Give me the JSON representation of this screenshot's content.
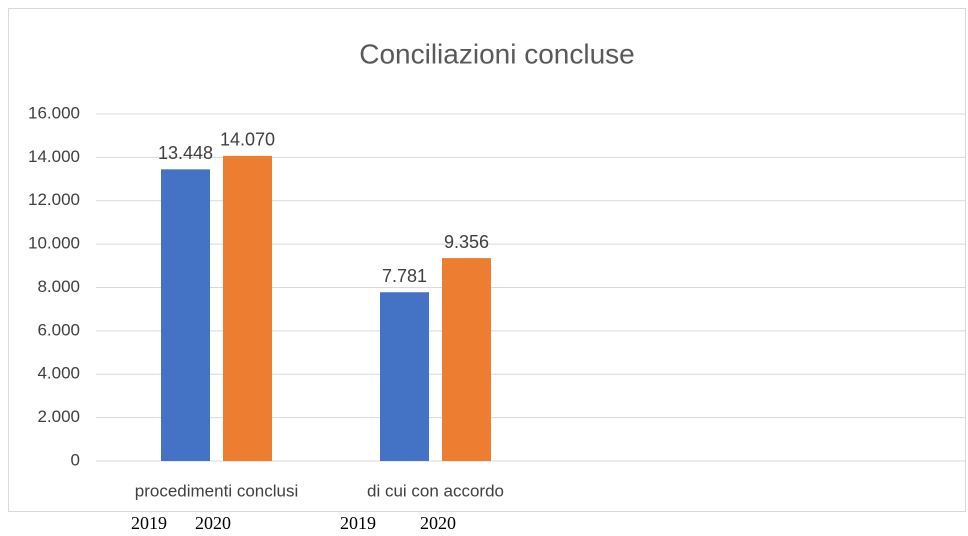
{
  "chart_data": {
    "type": "bar",
    "title": "Conciliazioni concluse",
    "categories": [
      "procedimenti conclusi",
      "di cui con accordo"
    ],
    "series": [
      {
        "name": "2019",
        "color": "#4472c4",
        "values": [
          13448,
          7781
        ],
        "value_labels": [
          "13.448",
          "7.781"
        ]
      },
      {
        "name": "2020",
        "color": "#ed7d31",
        "values": [
          14070,
          9356
        ],
        "value_labels": [
          "14.070",
          "9.356"
        ]
      }
    ],
    "ylim": [
      0,
      16000
    ],
    "yticks": [
      0,
      {
        "value": 2000,
        "label": "2.000"
      },
      {
        "value": 4000,
        "label": "4.000"
      },
      {
        "value": 6000,
        "label": "6.000"
      },
      {
        "value": 8000,
        "label": "8.000"
      },
      {
        "value": 10000,
        "label": "10.000"
      },
      {
        "value": 12000,
        "label": "12.000"
      },
      {
        "value": 14000,
        "label": "14.000"
      },
      {
        "value": 16000,
        "label": "16.000"
      }
    ],
    "grid": true
  }
}
